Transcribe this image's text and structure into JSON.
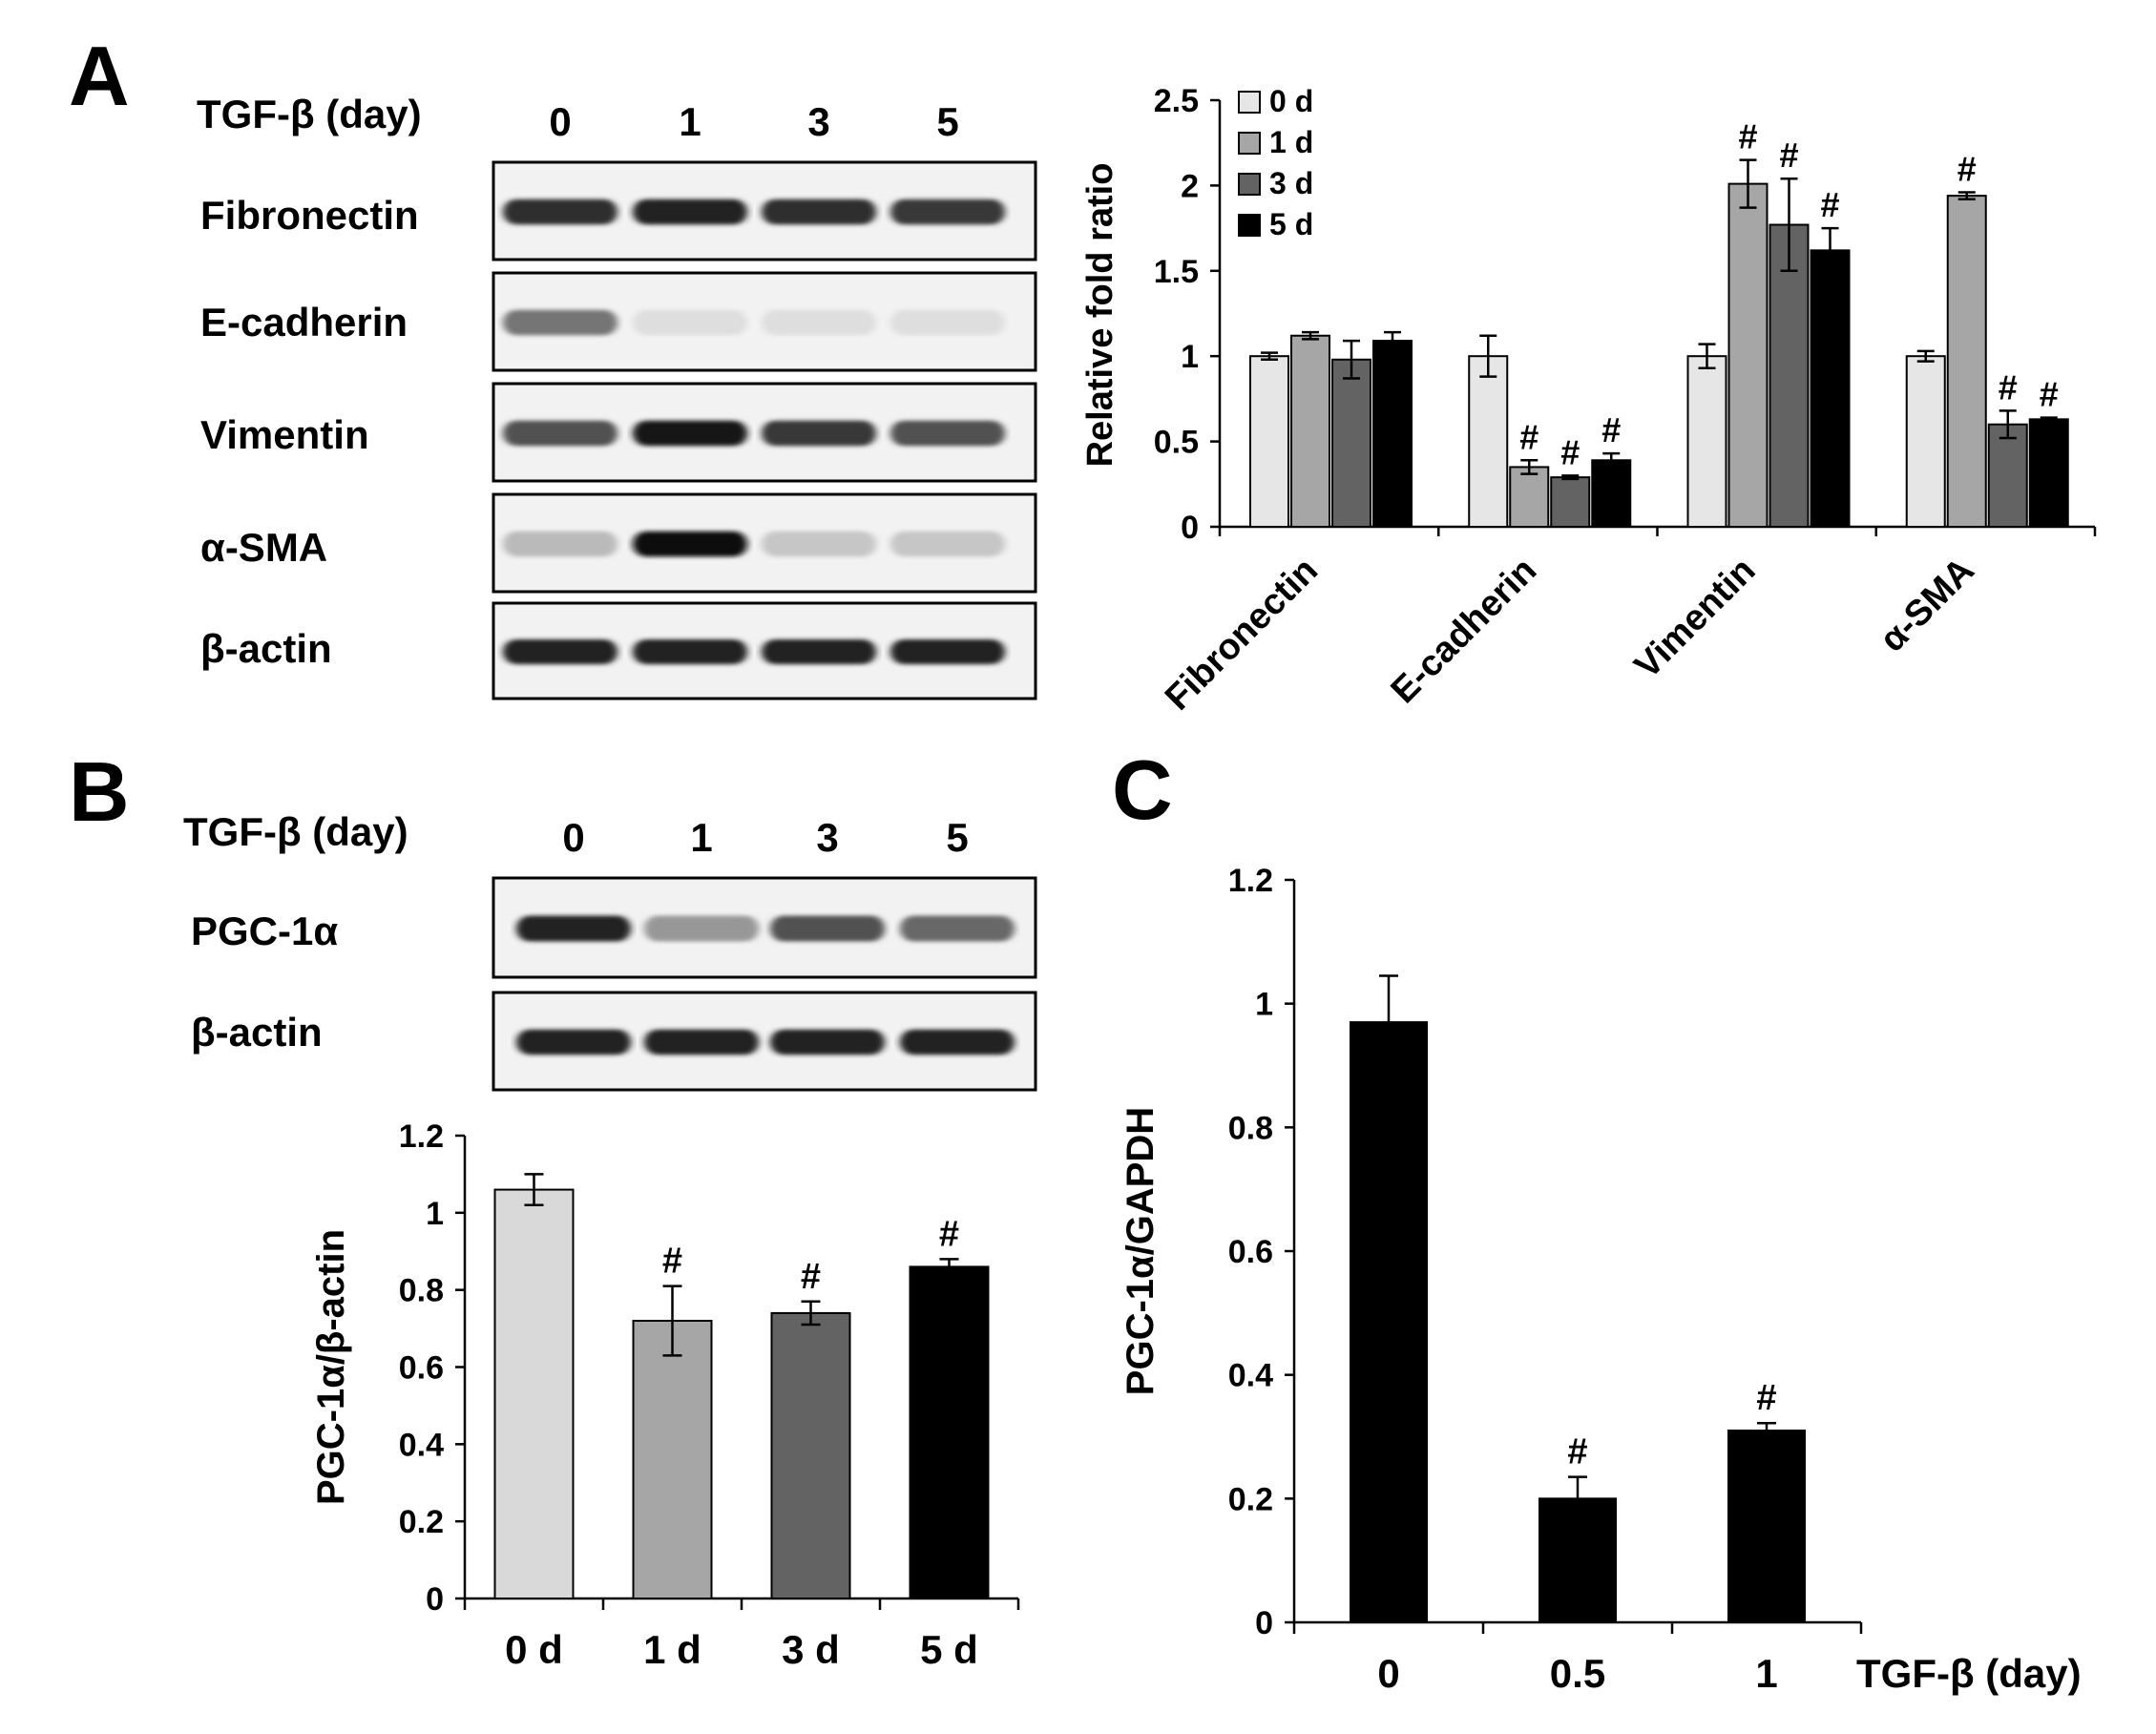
{
  "panel_labels": {
    "a": "A",
    "b": "B",
    "c": "C"
  },
  "colors": {
    "d0": "#e6e6e6",
    "d1": "#a6a6a6",
    "d3": "#636363",
    "d5": "#000000",
    "text": "#000000"
  },
  "panel_a": {
    "blot": {
      "header_label": "TGF-β (day)",
      "lanes": [
        "0",
        "1",
        "3",
        "5"
      ],
      "rows": [
        {
          "label": "Fibronectin",
          "intensity": [
            0.85,
            0.9,
            0.85,
            0.8
          ]
        },
        {
          "label": "E-cadherin",
          "intensity": [
            0.55,
            0.1,
            0.1,
            0.1
          ]
        },
        {
          "label": "Vimentin",
          "intensity": [
            0.7,
            0.95,
            0.8,
            0.7
          ]
        },
        {
          "label": "α-SMA",
          "intensity": [
            0.25,
            1.0,
            0.2,
            0.2
          ]
        },
        {
          "label": "β-actin",
          "intensity": [
            0.9,
            0.9,
            0.9,
            0.9
          ]
        }
      ]
    },
    "chart": {
      "type": "bar",
      "categories": [
        "Fibronectin",
        "E-cadherin",
        "Vimentin",
        "α-SMA"
      ],
      "series": [
        {
          "name": "0 d",
          "values": [
            1.0,
            1.0,
            1.0,
            1.0
          ],
          "errors": [
            0.02,
            0.12,
            0.07,
            0.03
          ],
          "marks": [
            "",
            "",
            "",
            ""
          ]
        },
        {
          "name": "1 d",
          "values": [
            1.12,
            0.35,
            2.01,
            1.94
          ],
          "errors": [
            0.02,
            0.04,
            0.14,
            0.02
          ],
          "marks": [
            "",
            "#",
            "#",
            "#"
          ]
        },
        {
          "name": "3 d",
          "values": [
            0.98,
            0.29,
            1.77,
            0.6
          ],
          "errors": [
            0.11,
            0.01,
            0.27,
            0.08
          ],
          "marks": [
            "",
            "#",
            "#",
            "#"
          ]
        },
        {
          "name": "5 d",
          "values": [
            1.09,
            0.39,
            1.62,
            0.63
          ],
          "errors": [
            0.05,
            0.04,
            0.13,
            0.01
          ],
          "marks": [
            "",
            "#",
            "#",
            "#"
          ]
        }
      ],
      "ylabel": "Relative fold ratio",
      "ylim": [
        0,
        2.5
      ],
      "yticks": [
        "0",
        "0.5",
        "1",
        "1.5",
        "2",
        "2.5"
      ]
    }
  },
  "panel_b": {
    "blot": {
      "header_label": "TGF-β (day)",
      "lanes": [
        "0",
        "1",
        "3",
        "5"
      ],
      "rows": [
        {
          "label": "PGC-1α",
          "intensity": [
            0.9,
            0.4,
            0.7,
            0.6
          ]
        },
        {
          "label": "β-actin",
          "intensity": [
            0.9,
            0.9,
            0.9,
            0.9
          ]
        }
      ]
    },
    "chart": {
      "type": "bar",
      "categories": [
        "0 d",
        "1 d",
        "3 d",
        "5 d"
      ],
      "values": [
        1.06,
        0.72,
        0.74,
        0.86
      ],
      "errors": [
        0.04,
        0.09,
        0.03,
        0.02
      ],
      "marks": [
        "",
        "#",
        "#",
        "#"
      ],
      "bar_colors": [
        "#d9d9d9",
        "#a6a6a6",
        "#636363",
        "#000000"
      ],
      "ylabel": "PGC-1α/β-actin",
      "ylim": [
        0,
        1.2
      ],
      "yticks": [
        "0",
        "0.2",
        "0.4",
        "0.6",
        "0.8",
        "1",
        "1.2"
      ]
    }
  },
  "panel_c": {
    "chart": {
      "type": "bar",
      "categories": [
        "0",
        "0.5",
        "1"
      ],
      "values": [
        0.97,
        0.2,
        0.31
      ],
      "errors": [
        0.075,
        0.035,
        0.012
      ],
      "marks": [
        "",
        "#",
        "#"
      ],
      "bar_color": "#000000",
      "ylabel": "PGC-1α/GAPDH",
      "xlabel": "TGF-β (day)",
      "ylim": [
        0,
        1.2
      ],
      "yticks": [
        "0",
        "0.2",
        "0.4",
        "0.6",
        "0.8",
        "1",
        "1.2"
      ]
    }
  },
  "chart_data": [
    {
      "type": "bar",
      "categories": [
        "Fibronectin",
        "E-cadherin",
        "Vimentin",
        "α-SMA"
      ],
      "series": [
        {
          "name": "0 d",
          "values": [
            1.0,
            1.0,
            1.0,
            1.0
          ]
        },
        {
          "name": "1 d",
          "values": [
            1.12,
            0.35,
            2.01,
            1.94
          ]
        },
        {
          "name": "3 d",
          "values": [
            0.98,
            0.29,
            1.77,
            0.6
          ]
        },
        {
          "name": "5 d",
          "values": [
            1.09,
            0.39,
            1.62,
            0.63
          ]
        }
      ],
      "ylabel": "Relative fold ratio",
      "ylim": [
        0,
        2.5
      ]
    },
    {
      "type": "bar",
      "categories": [
        "0 d",
        "1 d",
        "3 d",
        "5 d"
      ],
      "values": [
        1.06,
        0.72,
        0.74,
        0.86
      ],
      "ylabel": "PGC-1α/β-actin",
      "ylim": [
        0,
        1.2
      ]
    },
    {
      "type": "bar",
      "categories": [
        "0",
        "0.5",
        "1"
      ],
      "values": [
        0.97,
        0.2,
        0.31
      ],
      "ylabel": "PGC-1α/GAPDH",
      "xlabel": "TGF-β (day)",
      "ylim": [
        0,
        1.2
      ]
    }
  ]
}
